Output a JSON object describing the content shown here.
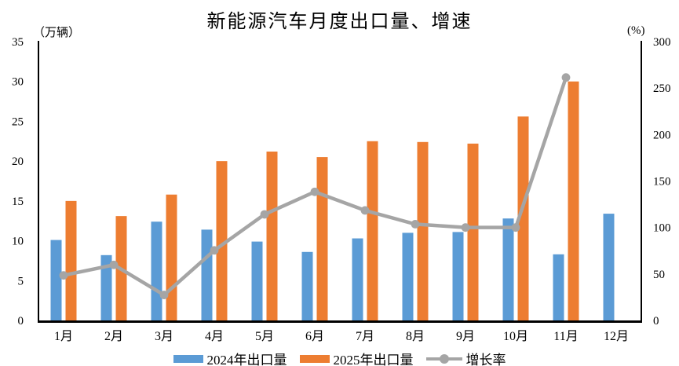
{
  "chart_data": {
    "type": "bar+line",
    "title": "新能源汽车月度出口量、增速",
    "categories": [
      "1月",
      "2月",
      "3月",
      "4月",
      "5月",
      "6月",
      "7月",
      "8月",
      "9月",
      "10月",
      "11月",
      "12月"
    ],
    "series": [
      {
        "name": "2024年出口量",
        "type": "bar",
        "axis": "left",
        "color": "#5B9BD5",
        "values": [
          10.1,
          8.2,
          12.4,
          11.4,
          9.9,
          8.6,
          10.3,
          11.0,
          11.1,
          12.8,
          8.3,
          13.4
        ]
      },
      {
        "name": "2025年出口量",
        "type": "bar",
        "axis": "left",
        "color": "#ED7D31",
        "values": [
          15.0,
          13.1,
          15.8,
          20.0,
          21.2,
          20.5,
          22.5,
          22.4,
          22.2,
          25.6,
          30.0,
          null
        ]
      },
      {
        "name": "增长率",
        "type": "line",
        "axis": "right",
        "color": "#A5A5A5",
        "values": [
          48.5,
          59.8,
          27.4,
          75.4,
          114.1,
          138.4,
          118.4,
          103.6,
          100.0,
          100.0,
          261.4,
          null
        ]
      }
    ],
    "left_axis": {
      "unit": "（万辆）",
      "min": 0,
      "max": 35,
      "step": 5,
      "ticks": [
        0,
        5,
        10,
        15,
        20,
        25,
        30,
        35
      ]
    },
    "right_axis": {
      "unit": "(%)",
      "min": 0,
      "max": 300,
      "step": 50,
      "ticks": [
        0,
        50,
        100,
        150,
        200,
        250,
        300
      ]
    },
    "grid": false,
    "legend_position": "bottom"
  },
  "colors": {
    "bar_2024": "#5B9BD5",
    "bar_2025": "#ED7D31",
    "growth_line": "#A5A5A5",
    "axis": "#000000",
    "background": "#FFFFFF"
  }
}
